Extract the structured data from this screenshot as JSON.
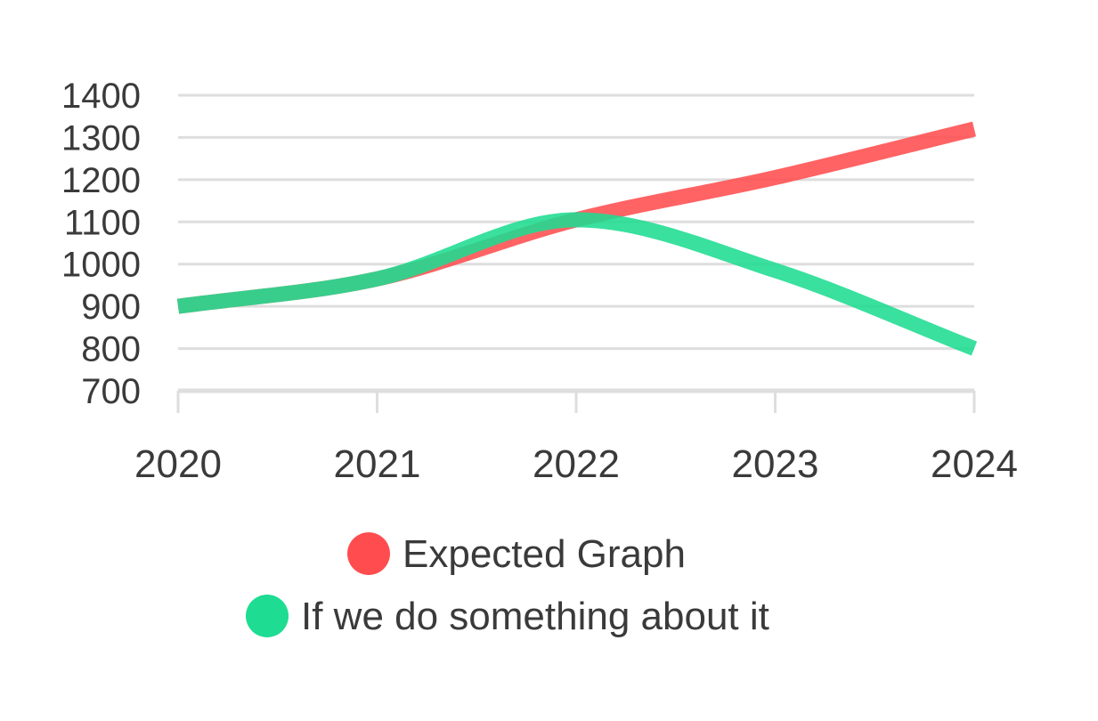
{
  "chart_data": {
    "type": "line",
    "title": "",
    "xlabel": "",
    "ylabel": "",
    "categories": [
      "2020",
      "2021",
      "2022",
      "2023",
      "2024"
    ],
    "ylim": [
      700,
      1400
    ],
    "yticks": [
      "1400",
      "1300",
      "1200",
      "1100",
      "1000",
      "900",
      "800",
      "700"
    ],
    "ytick_values": [
      1400,
      1300,
      1200,
      1100,
      1000,
      900,
      800,
      700
    ],
    "grid": true,
    "smooth": true,
    "legend_position": "bottom",
    "series": [
      {
        "name": "Expected Graph",
        "color": "#ff4d4f",
        "values": [
          900,
          965,
          1105,
          1205,
          1320
        ]
      },
      {
        "name": "If we do something about it",
        "color": "#1edc91",
        "values": [
          900,
          965,
          1105,
          985,
          800
        ]
      }
    ]
  }
}
